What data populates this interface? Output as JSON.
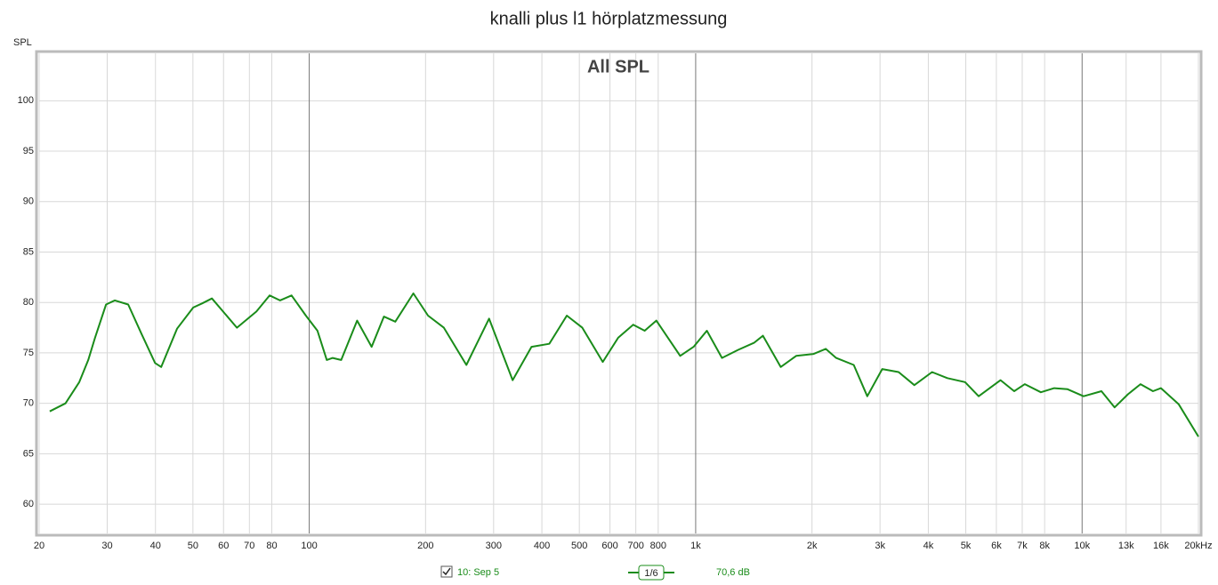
{
  "chart_data": {
    "type": "line",
    "title": "knalli plus l1 hörplatzmessung",
    "annotation": "All SPL",
    "y_label": "SPL",
    "log_x": true,
    "grid": true,
    "xlim": [
      20,
      20000
    ],
    "ylim": [
      57.1,
      104.7
    ],
    "xticks": [
      20,
      30,
      40,
      50,
      60,
      70,
      80,
      100,
      200,
      300,
      400,
      500,
      600,
      700,
      800,
      {
        "value": 1000,
        "label": "1k"
      },
      {
        "value": 2000,
        "label": "2k"
      },
      {
        "value": 3000,
        "label": "3k"
      },
      {
        "value": 4000,
        "label": "4k"
      },
      {
        "value": 5000,
        "label": "5k"
      },
      {
        "value": 6000,
        "label": "6k"
      },
      {
        "value": 7000,
        "label": "7k"
      },
      {
        "value": 8000,
        "label": "8k"
      },
      {
        "value": 10000,
        "label": "10k"
      },
      {
        "value": 13000,
        "label": "13k"
      },
      {
        "value": 16000,
        "label": "16k"
      },
      {
        "value": 20000,
        "label": "20kHz"
      }
    ],
    "yticks": [
      60,
      65,
      70,
      75,
      80,
      85,
      90,
      95,
      100
    ],
    "x": [
      21.3,
      23.4,
      25.4,
      26.8,
      27.9,
      29.8,
      31.4,
      34,
      36.8,
      39.9,
      41.4,
      45.5,
      50.1,
      52.8,
      56,
      65,
      73,
      79,
      84,
      90,
      98,
      105,
      111,
      115,
      121,
      133,
      145,
      156,
      167,
      186,
      203,
      223,
      255,
      292,
      336,
      376,
      418,
      464,
      509,
      575,
      630,
      689,
      738,
      791,
      912,
      988,
      1069,
      1170,
      1288,
      1416,
      1493,
      1660,
      1820,
      2020,
      2170,
      2310,
      2565,
      2780,
      3040,
      3350,
      3680,
      4090,
      4480,
      4980,
      5400,
      6150,
      6670,
      7110,
      7820,
      8470,
      9170,
      10090,
      11220,
      12140,
      13150,
      14160,
      15250,
      16000,
      17790,
      20000
    ],
    "series": [
      {
        "name": "10: Sep 5",
        "color": "#1a8c1a",
        "values": [
          69.2,
          70.0,
          72.1,
          74.3,
          76.5,
          79.8,
          80.2,
          79.8,
          76.9,
          74.0,
          73.6,
          77.4,
          79.5,
          79.9,
          80.4,
          77.5,
          79.1,
          80.7,
          80.2,
          80.7,
          78.7,
          77.2,
          74.3,
          74.5,
          74.3,
          78.2,
          75.6,
          78.6,
          78.1,
          80.9,
          78.7,
          77.5,
          73.8,
          78.4,
          72.3,
          75.6,
          75.9,
          78.7,
          77.5,
          74.1,
          76.5,
          77.8,
          77.2,
          78.2,
          74.7,
          75.6,
          77.2,
          74.5,
          75.3,
          76.0,
          76.7,
          73.6,
          74.7,
          74.9,
          75.4,
          74.5,
          73.8,
          70.7,
          73.4,
          73.1,
          71.8,
          73.1,
          72.5,
          72.1,
          70.7,
          72.3,
          71.2,
          71.9,
          71.1,
          71.5,
          71.4,
          70.7,
          71.2,
          69.6,
          70.9,
          71.9,
          71.2,
          71.5,
          69.9,
          66.7
        ]
      }
    ],
    "smoothing": "1/6",
    "level": "70,6 dB"
  }
}
